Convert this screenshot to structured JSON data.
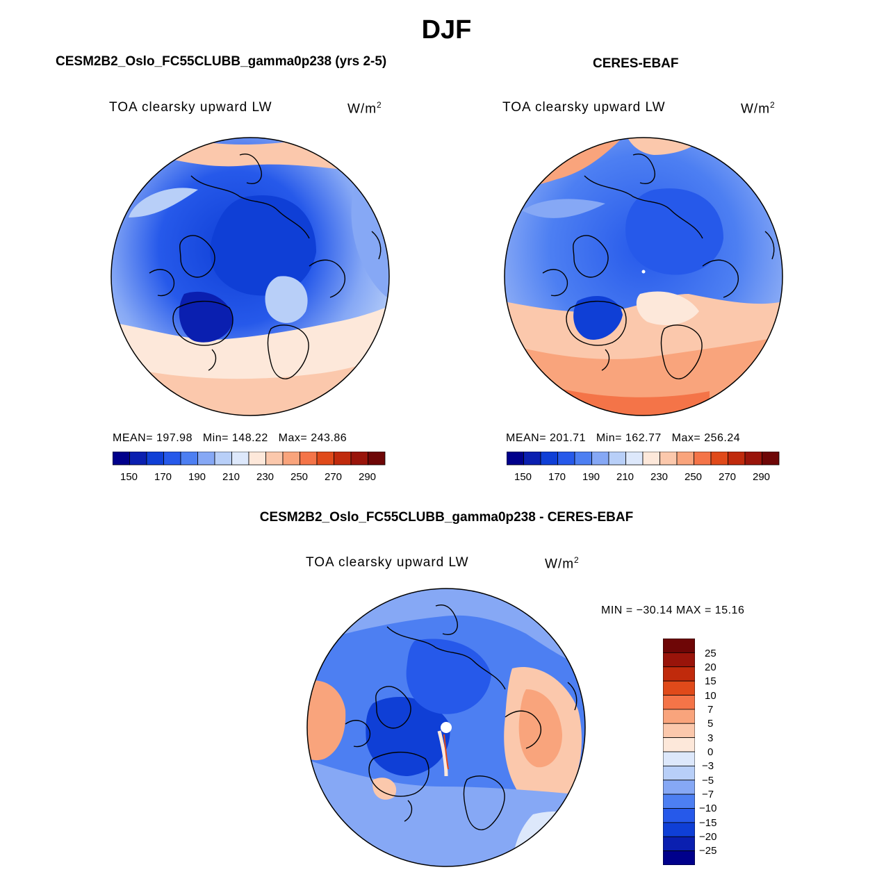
{
  "title": "DJF",
  "panels": [
    {
      "name": "model",
      "title": "CESM2B2_Oslo_FC55CLUBB_gamma0p238 (yrs 2-5)",
      "var_label": "TOA clearsky upward LW",
      "units": "W/m",
      "units_sup": "2",
      "mean_label": "MEAN=",
      "mean": "197.98",
      "min_label": "Min=",
      "min": "148.22",
      "max_label": "Max=",
      "max": "243.86"
    },
    {
      "name": "obs",
      "title": "CERES-EBAF",
      "var_label": "TOA clearsky upward LW",
      "units": "W/m",
      "units_sup": "2",
      "mean_label": "MEAN=",
      "mean": "201.71",
      "min_label": "Min=",
      "min": "162.77",
      "max_label": "Max=",
      "max": "256.24"
    },
    {
      "name": "diff",
      "title": "CESM2B2_Oslo_FC55CLUBB_gamma0p238 - CERES-EBAF",
      "var_label": "TOA clearsky upward LW",
      "units": "W/m",
      "units_sup": "2",
      "minmax_text": "MIN = −30.14 MAX =  15.16"
    }
  ],
  "colorbar_abs": {
    "colors": [
      "#00008b",
      "#0a1fb0",
      "#0f3fd6",
      "#2659ea",
      "#4d7ff2",
      "#86a8f5",
      "#b8cff8",
      "#dde8fb",
      "#fde8da",
      "#fbc8ac",
      "#f9a47c",
      "#f47448",
      "#e04a1a",
      "#c02a0c",
      "#99140a",
      "#6e0606"
    ],
    "tick_labels": [
      "150",
      "170",
      "190",
      "210",
      "230",
      "250",
      "270",
      "290"
    ]
  },
  "colorbar_diff": {
    "colors": [
      "#00008b",
      "#0a1fb0",
      "#0f3fd6",
      "#2659ea",
      "#4d7ff2",
      "#86a8f5",
      "#b8cff8",
      "#dde8fb",
      "#fde8da",
      "#fbc8ac",
      "#f9a47c",
      "#f47448",
      "#e04a1a",
      "#c02a0c",
      "#99140a",
      "#6e0606"
    ],
    "tick_labels": [
      "25",
      "20",
      "15",
      "10",
      "7",
      "5",
      "3",
      "0",
      "−3",
      "−5",
      "−7",
      "−10",
      "−15",
      "−20",
      "−25"
    ]
  },
  "chart_data": [
    {
      "type": "heatmap",
      "projection": "north polar stereographic",
      "title": "CESM2B2_Oslo_FC55CLUBB_gamma0p238 (yrs 2-5)",
      "variable": "TOA clearsky upward LW",
      "units": "W/m2",
      "mean": 197.98,
      "min": 148.22,
      "max": 243.86,
      "levels": [
        150,
        160,
        170,
        180,
        190,
        200,
        210,
        220,
        230,
        240,
        250,
        260,
        270,
        280,
        290
      ]
    },
    {
      "type": "heatmap",
      "projection": "north polar stereographic",
      "title": "CERES-EBAF",
      "variable": "TOA clearsky upward LW",
      "units": "W/m2",
      "mean": 201.71,
      "min": 162.77,
      "max": 256.24,
      "levels": [
        150,
        160,
        170,
        180,
        190,
        200,
        210,
        220,
        230,
        240,
        250,
        260,
        270,
        280,
        290
      ]
    },
    {
      "type": "heatmap",
      "projection": "north polar stereographic",
      "title": "CESM2B2_Oslo_FC55CLUBB_gamma0p238 - CERES-EBAF",
      "variable": "TOA clearsky upward LW",
      "units": "W/m2",
      "min": -30.14,
      "max": 15.16,
      "levels": [
        -25,
        -20,
        -15,
        -10,
        -7,
        -5,
        -3,
        0,
        3,
        5,
        7,
        10,
        15,
        20,
        25
      ]
    }
  ]
}
